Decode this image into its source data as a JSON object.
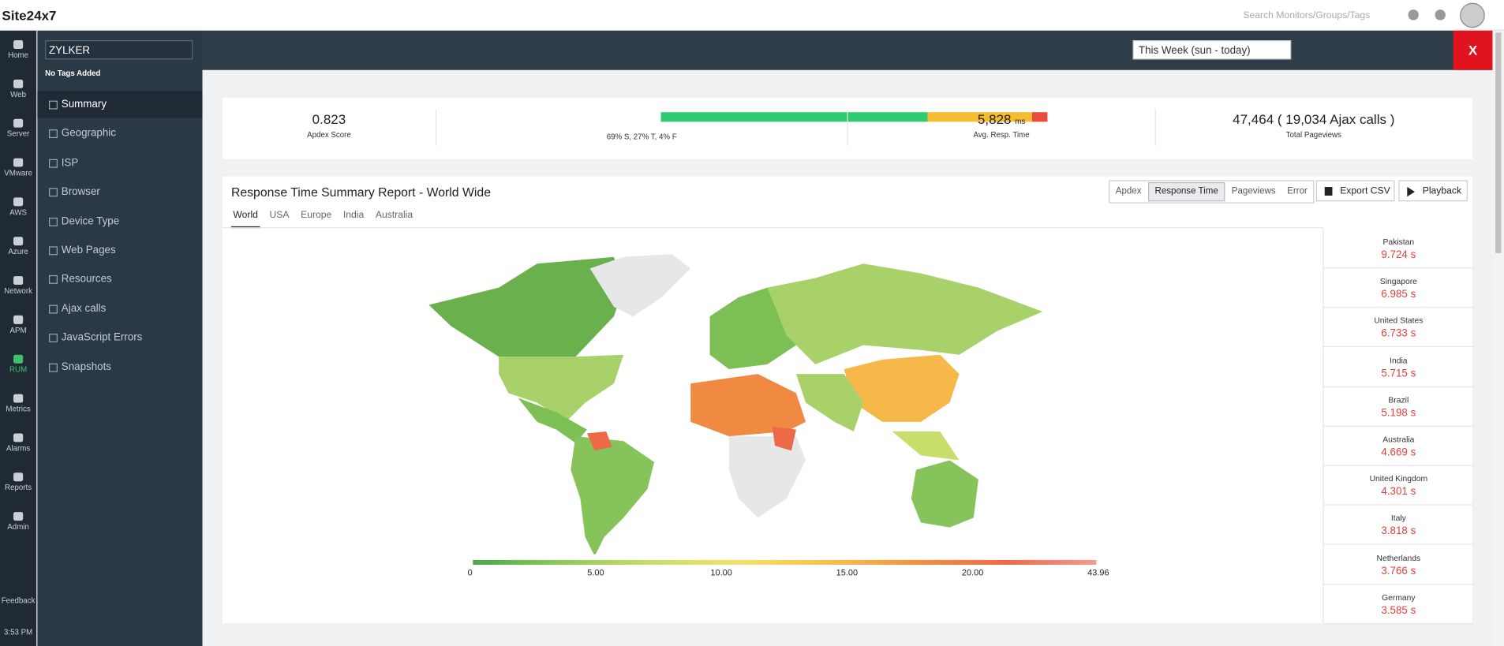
{
  "header": {
    "logo": "Site24x7",
    "search_placeholder": "Search Monitors/Groups/Tags"
  },
  "nav": {
    "items": [
      "Home",
      "Web",
      "Server",
      "VMware",
      "AWS",
      "Azure",
      "Network",
      "APM",
      "RUM",
      "Metrics",
      "Alarms",
      "Reports",
      "Admin"
    ],
    "active": 8,
    "feedback": "Feedback",
    "time": "3:53 PM"
  },
  "sidebar": {
    "monitor": "ZYLKER",
    "tags": "No Tags Added",
    "items": [
      "Summary",
      "Geographic",
      "ISP",
      "Browser",
      "Device Type",
      "Web Pages",
      "Resources",
      "Ajax calls",
      "JavaScript Errors",
      "Snapshots"
    ],
    "active": 0
  },
  "toolbar": {
    "period": "This Week (sun - today)",
    "close": "X"
  },
  "stats": {
    "apdex": {
      "value": "0.823",
      "label": "Apdex Score"
    },
    "breakdown": {
      "label": "69% S, 27% T, 4% F",
      "segments": [
        {
          "value": 69,
          "color": "#2ecc71"
        },
        {
          "value": 27,
          "color": "#f5bc2f"
        },
        {
          "value": 4,
          "color": "#e74c3c"
        }
      ]
    },
    "response": {
      "value": "5,828",
      "unit": "ms",
      "label": "Avg. Resp. Time"
    },
    "pageviews": {
      "value": "47,464 ( 19,034 Ajax calls )",
      "label": "Total Pageviews"
    }
  },
  "report": {
    "title": "Response Time Summary Report - World Wide",
    "metric_tabs": [
      "Apdex",
      "Response Time",
      "Pageviews",
      "Error"
    ],
    "active_metric": 1,
    "buttons": [
      "Export CSV",
      "Playback"
    ],
    "region_tabs": [
      "World",
      "USA",
      "Europe",
      "India",
      "Australia"
    ],
    "active_region": 0,
    "legend": {
      "ticks": [
        0,
        {
          "value": 5,
          "label": "5.00"
        },
        {
          "value": 10,
          "label": "10.00"
        },
        {
          "value": 15,
          "label": "15.00"
        },
        {
          "value": 20,
          "label": "20.00"
        },
        43.96
      ]
    },
    "top_countries": [
      {
        "name": "Pakistan",
        "value": "9.724 s"
      },
      {
        "name": "Singapore",
        "value": "6.985 s"
      },
      {
        "name": "United States",
        "value": "6.733 s"
      },
      {
        "name": "India",
        "value": "5.715 s"
      },
      {
        "name": "Brazil",
        "value": "5.198 s"
      },
      {
        "name": "Australia",
        "value": "4.669 s"
      },
      {
        "name": "United Kingdom",
        "value": "4.301 s"
      },
      {
        "name": "Italy",
        "value": "3.818 s"
      },
      {
        "name": "Netherlands",
        "value": "3.766 s"
      },
      {
        "name": "Germany",
        "value": "3.585 s"
      }
    ]
  }
}
